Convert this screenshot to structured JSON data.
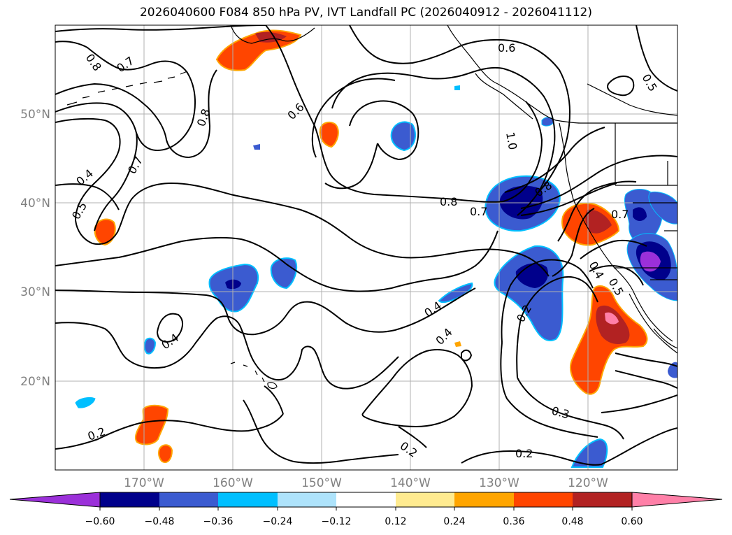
{
  "title": "2026040600 F084 850 hPa PV, IVT Landfall PC (2026040912 - 2026041112)",
  "map": {
    "lat_labels": [
      "50°N",
      "40°N",
      "30°N",
      "20°N"
    ],
    "lon_labels": [
      "170°W",
      "160°W",
      "150°W",
      "140°W",
      "130°W",
      "120°W"
    ],
    "contour_labels": [
      "0.8",
      "0.7",
      "0.8",
      "0.7",
      "0.4",
      "0.5",
      "0.6",
      "0.6",
      "1.0",
      "0.8",
      "0.7",
      "0.8",
      "0.4",
      "0.4",
      "0.4",
      "0.2",
      "0.2",
      "0.3",
      "0.2",
      "0.2",
      "0.4",
      "0.5",
      "0.5",
      "0.7"
    ],
    "colors": {
      "contour": "#000000",
      "grid": "#b0b0b0",
      "coast": "#000000"
    }
  },
  "colorbar": {
    "tick_labels": [
      "−0.60",
      "−0.48",
      "−0.36",
      "−0.24",
      "−0.12",
      "0.12",
      "0.24",
      "0.36",
      "0.48",
      "0.60"
    ],
    "colors": [
      "#9b30d9",
      "#00008b",
      "#3b5bd0",
      "#00bfff",
      "#aee3fb",
      "#ffffff",
      "#ffeb90",
      "#ffa500",
      "#ff4500",
      "#b22222",
      "#ff80a8"
    ]
  }
}
